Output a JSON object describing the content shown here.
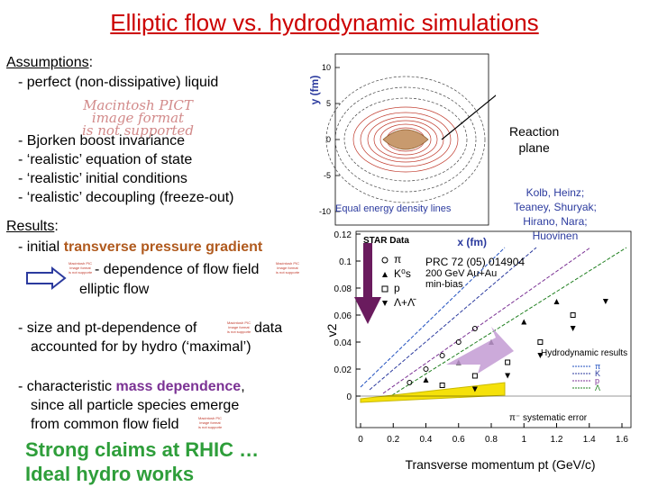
{
  "title": "Elliptic flow vs. hydrodynamic simulations",
  "assumptions": {
    "heading": "Assumptions",
    "colon": ":",
    "item1": "- perfect (non-dissipative) liquid",
    "item2": "- Bjorken boost invariance",
    "item3": "- ‘realistic’ equation of state",
    "item4": "- ‘realistic’ initial conditions",
    "item5": "- ‘realistic’ decoupling (freeze-out)"
  },
  "pict_placeholder_large": {
    "line1": "Macintosh PICT",
    "line2": "image format",
    "line3": "is not supported"
  },
  "pict_placeholder_small": {
    "line1": "Macintosh PICT",
    "line2": "image format",
    "line3": "is not supported"
  },
  "results": {
    "heading": "Results",
    "colon": ":",
    "line1_prefix": "- initial ",
    "line1_highlight": "transverse pressure gradient",
    "line2": "- dependence of flow field",
    "line3": "elliptic flow",
    "line4_prefix": "- size and pt-dependence of",
    "line4_suffix": "data",
    "line5": "accounted for by hydro (‘maximal’)",
    "line6_prefix": "- characteristic ",
    "line6_highlight": "mass dependence",
    "line6_suffix": ",",
    "line7": "since all particle species emerge",
    "line8": "from common flow field"
  },
  "claims": {
    "line1": "Strong claims at RHIC …",
    "line2": "Ideal hydro works"
  },
  "top_plot": {
    "ylabel": "y (fm)",
    "xlabel": "x (fm)",
    "yticks": [
      "10",
      "5",
      "0",
      "-5",
      "-10"
    ],
    "caption": "Equal energy density lines",
    "annotation": "Reaction\nplane"
  },
  "authors": "Kolb, Heinz;\nTeaney, Shuryak;\nHirano, Nara;\nHuovinen",
  "bottom_plot": {
    "ylabel": "v2",
    "xlabel": "Transverse momentum pt (GeV/c)",
    "yticks": [
      "0.12",
      "0.1",
      "0.08",
      "0.06",
      "0.04",
      "0.02",
      "0"
    ],
    "xticks": [
      "0",
      "0.2",
      "0.4",
      "0.6",
      "0.8",
      "1",
      "1.2",
      "1.4",
      "1.6"
    ],
    "logo": "STAR Data",
    "ref": "PRC 72 (05) 014904",
    "system": "200 GeV Au+Au",
    "centrality": "min-bias",
    "legend_items": [
      "π",
      "K⁰s",
      "p",
      "Λ+Λ̄"
    ],
    "hydro_title": "Hydrodynamic results",
    "hydro_items": [
      "π",
      "K",
      "p",
      "Λ"
    ],
    "syserr": "π⁻ systematic error"
  },
  "colors": {
    "title": "#cc0000",
    "brown": "#b05a1e",
    "purple": "#7b3294",
    "green": "#2e9e3a",
    "arrow_blue": "#2b3a9e",
    "arrow_purple": "#6a1b5e",
    "band": "#f5e10a"
  }
}
